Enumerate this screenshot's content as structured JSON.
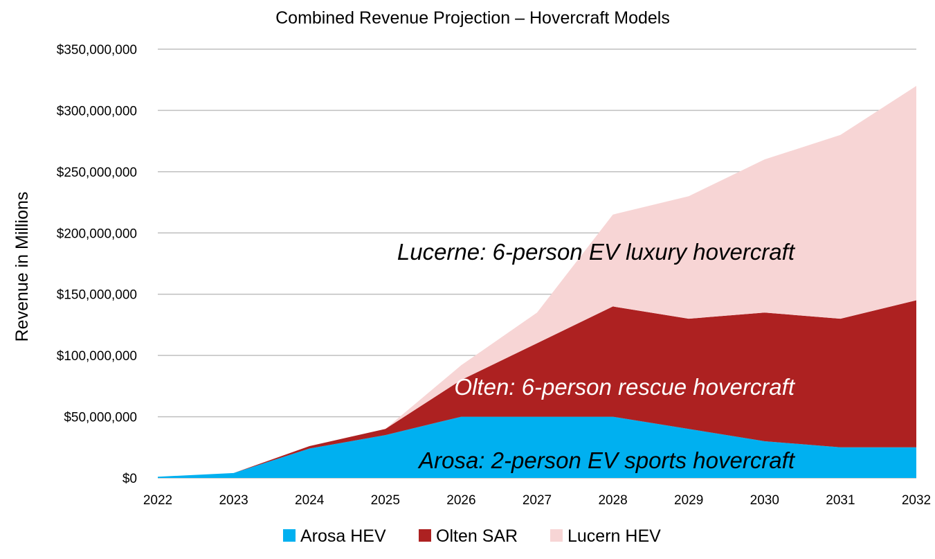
{
  "chart_data": {
    "type": "area",
    "stacked": true,
    "title": "Combined Revenue Projection – Hovercraft Models",
    "xlabel": "",
    "ylabel": "Revenue in Millions",
    "ylim": [
      0,
      350000000
    ],
    "y_ticks": [
      0,
      50000000,
      100000000,
      150000000,
      200000000,
      250000000,
      300000000,
      350000000
    ],
    "y_tick_labels": [
      "$0",
      "$50,000,000",
      "$100,000,000",
      "$150,000,000",
      "$200,000,000",
      "$250,000,000",
      "$300,000,000",
      "$350,000,000"
    ],
    "grid": true,
    "legend_position": "bottom",
    "x": [
      "2022",
      "2023",
      "2024",
      "2025",
      "2026",
      "2027",
      "2028",
      "2029",
      "2030",
      "2031",
      "2032"
    ],
    "series": [
      {
        "name": "Arosa HEV",
        "color": "#00b0f0",
        "values": [
          1000000,
          4000000,
          24000000,
          35000000,
          50000000,
          50000000,
          50000000,
          40000000,
          30000000,
          25000000,
          25000000
        ]
      },
      {
        "name": "Olten SAR",
        "color": "#ad2121",
        "values": [
          0,
          0,
          2000000,
          5000000,
          30000000,
          60000000,
          90000000,
          90000000,
          105000000,
          105000000,
          120000000
        ]
      },
      {
        "name": "Lucern HEV",
        "color": "#f7d5d5",
        "values": [
          0,
          0,
          0,
          0,
          12000000,
          25000000,
          75000000,
          100000000,
          125000000,
          150000000,
          175000000
        ]
      }
    ],
    "annotations": [
      {
        "text": "Lucerne: 6-person EV luxury hovercraft",
        "color": "#000000"
      },
      {
        "text": "Olten: 6-person rescue hovercraft",
        "color": "#ffffff"
      },
      {
        "text": "Arosa: 2-person EV sports hovercraft",
        "color": "#000000"
      }
    ]
  }
}
